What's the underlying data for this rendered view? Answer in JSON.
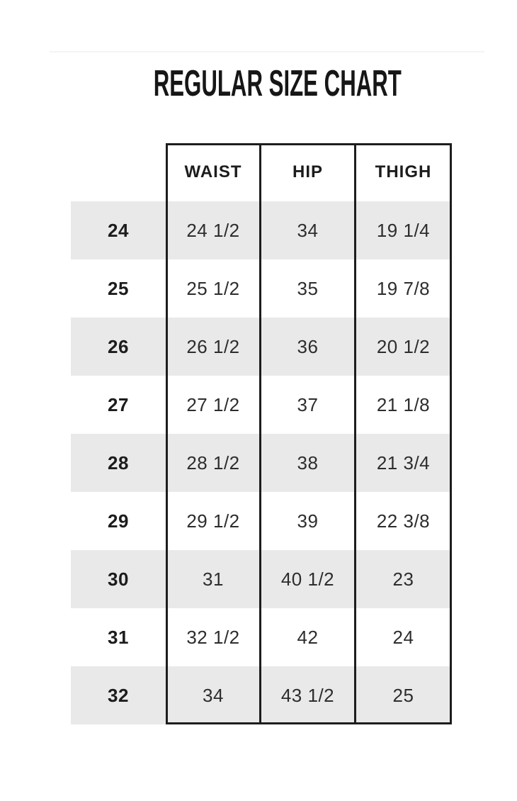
{
  "title": "REGULAR SIZE CHART",
  "colors": {
    "stripe": "#e9e9e9",
    "table_border": "#1d1d1d",
    "text": "#2d2d2d",
    "heading": "#161616"
  },
  "chart_data": {
    "type": "table",
    "title": "REGULAR SIZE CHART",
    "columns": [
      "",
      "WAIST",
      "HIP",
      "THIGH"
    ],
    "rows": [
      [
        "24",
        "24 1/2",
        "34",
        "19 1/4"
      ],
      [
        "25",
        "25 1/2",
        "35",
        "19 7/8"
      ],
      [
        "26",
        "26 1/2",
        "36",
        "20 1/2"
      ],
      [
        "27",
        "27 1/2",
        "37",
        "21 1/8"
      ],
      [
        "28",
        "28 1/2",
        "38",
        "21 3/4"
      ],
      [
        "29",
        "29 1/2",
        "39",
        "22 3/8"
      ],
      [
        "30",
        "31",
        "40 1/2",
        "23"
      ],
      [
        "31",
        "32 1/2",
        "42",
        "24"
      ],
      [
        "32",
        "34",
        "43 1/2",
        "25"
      ]
    ],
    "layout": {
      "striped_rows": "odd sizes 24,26,28,30,32 shaded gray",
      "size_column_borderless": true,
      "grid": "outer border and column dividers only, no horizontal row lines"
    }
  }
}
